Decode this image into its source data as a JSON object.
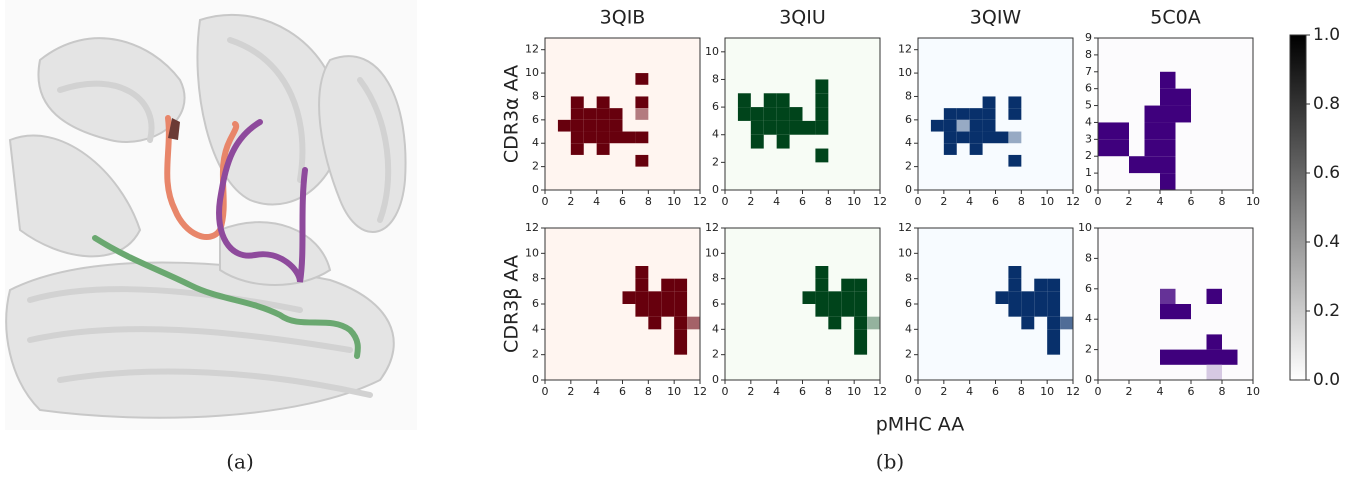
{
  "captions": [
    "(a)",
    "(b)"
  ],
  "chart_data": {
    "type": "heatmap-grid",
    "xlabel": "pMHC AA",
    "panels": [
      {
        "title": "3QIB",
        "ylabel": "CDR3α AA",
        "colors": [
          "#fff5f0",
          "#67000d"
        ],
        "xlim": [
          0,
          12
        ],
        "ylim": [
          0,
          13
        ],
        "xticks": [
          0,
          2,
          4,
          6,
          8,
          10,
          12
        ],
        "yticks": [
          0,
          2,
          4,
          6,
          8,
          10,
          12
        ],
        "cells": [
          [
            7,
            9,
            1
          ],
          [
            2,
            7,
            1
          ],
          [
            4,
            7,
            1
          ],
          [
            7,
            7,
            1
          ],
          [
            2,
            6,
            1
          ],
          [
            3,
            6,
            1
          ],
          [
            4,
            6,
            1
          ],
          [
            5,
            6,
            1
          ],
          [
            7,
            6,
            0.5
          ],
          [
            1,
            5,
            1
          ],
          [
            2,
            5,
            1
          ],
          [
            3,
            5,
            1
          ],
          [
            4,
            5,
            1
          ],
          [
            5,
            5,
            1
          ],
          [
            2,
            4,
            1
          ],
          [
            3,
            4,
            1
          ],
          [
            4,
            4,
            1
          ],
          [
            5,
            4,
            1
          ],
          [
            6,
            4,
            1
          ],
          [
            7,
            4,
            1
          ],
          [
            2,
            3,
            1
          ],
          [
            4,
            3,
            1
          ],
          [
            7,
            2,
            1
          ]
        ]
      },
      {
        "title": "3QIU",
        "colors": [
          "#f7fcf5",
          "#00441b"
        ],
        "xlim": [
          0,
          12
        ],
        "ylim": [
          0,
          11
        ],
        "xticks": [
          0,
          2,
          4,
          6,
          8,
          10,
          12
        ],
        "yticks": [
          0,
          2,
          4,
          6,
          8,
          10
        ],
        "cells": [
          [
            7,
            7,
            1
          ],
          [
            1,
            6,
            1
          ],
          [
            3,
            6,
            1
          ],
          [
            4,
            6,
            1
          ],
          [
            7,
            6,
            1
          ],
          [
            1,
            5,
            1
          ],
          [
            2,
            5,
            1
          ],
          [
            3,
            5,
            1
          ],
          [
            4,
            5,
            1
          ],
          [
            5,
            5,
            1
          ],
          [
            7,
            5,
            1
          ],
          [
            2,
            4,
            1
          ],
          [
            3,
            4,
            1
          ],
          [
            4,
            4,
            1
          ],
          [
            5,
            4,
            1
          ],
          [
            6,
            4,
            1
          ],
          [
            7,
            4,
            1
          ],
          [
            2,
            3,
            1
          ],
          [
            4,
            3,
            1
          ],
          [
            7,
            2,
            1
          ]
        ]
      },
      {
        "title": "3QIW",
        "colors": [
          "#f7fbff",
          "#08306b"
        ],
        "xlim": [
          0,
          12
        ],
        "ylim": [
          0,
          13
        ],
        "xticks": [
          0,
          2,
          4,
          6,
          8,
          10,
          12
        ],
        "yticks": [
          0,
          2,
          4,
          6,
          8,
          10,
          12
        ],
        "cells": [
          [
            5,
            7,
            1
          ],
          [
            7,
            7,
            1
          ],
          [
            2,
            6,
            1
          ],
          [
            3,
            6,
            1
          ],
          [
            4,
            6,
            1
          ],
          [
            5,
            6,
            1
          ],
          [
            7,
            6,
            1
          ],
          [
            1,
            5,
            1
          ],
          [
            2,
            5,
            1
          ],
          [
            3,
            5,
            0.4
          ],
          [
            4,
            5,
            1
          ],
          [
            5,
            5,
            1
          ],
          [
            2,
            4,
            1
          ],
          [
            3,
            4,
            1
          ],
          [
            4,
            4,
            1
          ],
          [
            5,
            4,
            1
          ],
          [
            6,
            4,
            1
          ],
          [
            7,
            4,
            0.4
          ],
          [
            2,
            3,
            1
          ],
          [
            4,
            3,
            1
          ],
          [
            7,
            2,
            1
          ]
        ]
      },
      {
        "title": "5C0A",
        "colors": [
          "#fcfbfd",
          "#3f007d"
        ],
        "xlim": [
          0,
          10
        ],
        "ylim": [
          0,
          9
        ],
        "xticks": [
          0,
          2,
          4,
          6,
          8,
          10
        ],
        "yticks": [
          0,
          1,
          2,
          3,
          4,
          5,
          6,
          7,
          8,
          9
        ],
        "cells": [
          [
            4,
            6,
            1
          ],
          [
            4,
            5,
            1
          ],
          [
            5,
            5,
            1
          ],
          [
            3,
            4,
            1
          ],
          [
            4,
            4,
            1
          ],
          [
            5,
            4,
            1
          ],
          [
            0,
            3,
            1
          ],
          [
            1,
            3,
            1
          ],
          [
            3,
            3,
            1
          ],
          [
            4,
            3,
            1
          ],
          [
            0,
            2,
            1
          ],
          [
            1,
            2,
            1
          ],
          [
            3,
            2,
            1
          ],
          [
            4,
            2,
            1
          ],
          [
            2,
            1,
            1
          ],
          [
            3,
            1,
            1
          ],
          [
            4,
            1,
            1
          ],
          [
            4,
            0,
            1
          ]
        ]
      },
      {
        "ylabel": "CDR3β AA",
        "colors": [
          "#fff5f0",
          "#67000d"
        ],
        "xlim": [
          0,
          12
        ],
        "ylim": [
          0,
          12
        ],
        "xticks": [
          0,
          2,
          4,
          6,
          8,
          10,
          12
        ],
        "yticks": [
          0,
          2,
          4,
          6,
          8,
          10,
          12
        ],
        "cells": [
          [
            7,
            8,
            1
          ],
          [
            7,
            7,
            1
          ],
          [
            9,
            7,
            1
          ],
          [
            10,
            7,
            1
          ],
          [
            6,
            6,
            1
          ],
          [
            7,
            6,
            1
          ],
          [
            8,
            6,
            1
          ],
          [
            9,
            6,
            1
          ],
          [
            10,
            6,
            1
          ],
          [
            7,
            5,
            1
          ],
          [
            8,
            5,
            1
          ],
          [
            9,
            5,
            1
          ],
          [
            10,
            5,
            1
          ],
          [
            8,
            4,
            1
          ],
          [
            10,
            4,
            1
          ],
          [
            11,
            4,
            0.6
          ],
          [
            10,
            3,
            1
          ],
          [
            10,
            2,
            1
          ]
        ]
      },
      {
        "colors": [
          "#f7fcf5",
          "#00441b"
        ],
        "xlim": [
          0,
          12
        ],
        "ylim": [
          0,
          12
        ],
        "xticks": [
          0,
          2,
          4,
          6,
          8,
          10,
          12
        ],
        "yticks": [
          0,
          2,
          4,
          6,
          8,
          10,
          12
        ],
        "cells": [
          [
            7,
            8,
            1
          ],
          [
            7,
            7,
            1
          ],
          [
            9,
            7,
            1
          ],
          [
            10,
            7,
            1
          ],
          [
            6,
            6,
            1
          ],
          [
            7,
            6,
            1
          ],
          [
            8,
            6,
            1
          ],
          [
            9,
            6,
            1
          ],
          [
            10,
            6,
            1
          ],
          [
            7,
            5,
            1
          ],
          [
            8,
            5,
            1
          ],
          [
            9,
            5,
            1
          ],
          [
            10,
            5,
            1
          ],
          [
            8,
            4,
            1
          ],
          [
            10,
            4,
            1
          ],
          [
            11,
            4,
            0.4
          ],
          [
            10,
            3,
            1
          ],
          [
            10,
            2,
            1
          ]
        ]
      },
      {
        "colors": [
          "#f7fbff",
          "#08306b"
        ],
        "xlim": [
          0,
          12
        ],
        "ylim": [
          0,
          12
        ],
        "xticks": [
          0,
          2,
          4,
          6,
          8,
          10,
          12
        ],
        "yticks": [
          0,
          2,
          4,
          6,
          8,
          10,
          12
        ],
        "cells": [
          [
            7,
            8,
            1
          ],
          [
            7,
            7,
            1
          ],
          [
            9,
            7,
            1
          ],
          [
            10,
            7,
            1
          ],
          [
            6,
            6,
            1
          ],
          [
            7,
            6,
            1
          ],
          [
            8,
            6,
            1
          ],
          [
            9,
            6,
            1
          ],
          [
            10,
            6,
            1
          ],
          [
            7,
            5,
            1
          ],
          [
            8,
            5,
            1
          ],
          [
            9,
            5,
            1
          ],
          [
            10,
            5,
            1
          ],
          [
            8,
            4,
            1
          ],
          [
            10,
            4,
            1
          ],
          [
            11,
            4,
            0.7
          ],
          [
            10,
            3,
            1
          ],
          [
            10,
            2,
            1
          ]
        ]
      },
      {
        "colors": [
          "#fcfbfd",
          "#3f007d"
        ],
        "xlim": [
          0,
          10
        ],
        "ylim": [
          0,
          10
        ],
        "xticks": [
          0,
          2,
          4,
          6,
          8,
          10
        ],
        "yticks": [
          0,
          2,
          4,
          6,
          8,
          10
        ],
        "cells": [
          [
            4,
            5,
            0.8
          ],
          [
            7,
            5,
            1
          ],
          [
            4,
            4,
            1
          ],
          [
            5,
            4,
            1
          ],
          [
            7,
            2,
            1
          ],
          [
            4,
            1,
            1
          ],
          [
            5,
            1,
            1
          ],
          [
            6,
            1,
            1
          ],
          [
            7,
            1,
            1
          ],
          [
            8,
            1,
            1
          ],
          [
            7,
            0,
            0.2
          ]
        ]
      }
    ],
    "colorbar": {
      "ylim": [
        0,
        1
      ],
      "yticks": [
        {
          "value": 0,
          "label": "0.0"
        },
        0.2,
        0.4,
        0.6,
        0.8,
        {
          "value": 1,
          "label": "1.0"
        }
      ]
    }
  }
}
